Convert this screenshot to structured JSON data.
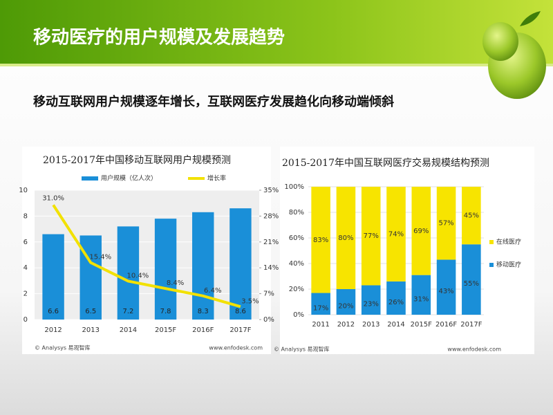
{
  "header": {
    "title": "移动医疗的用户规模及发展趋势"
  },
  "subtitle": "移动互联网用户规模逐年增长，互联网医疗发展趋化向移动端倾斜",
  "chart_data": [
    {
      "type": "bar",
      "title": "2015-2017年中国移动互联网用户规模预测",
      "categories": [
        "2012",
        "2013",
        "2014",
        "2015F",
        "2016F",
        "2017F"
      ],
      "series": [
        {
          "name": "用户规模（亿人次）",
          "color": "#1a8fd8",
          "values": [
            6.6,
            6.5,
            7.2,
            7.8,
            8.3,
            8.6
          ]
        },
        {
          "name": "增长率",
          "color": "#f2e100",
          "type": "line",
          "axis": "y2",
          "values": [
            31.0,
            15.4,
            10.4,
            8.4,
            6.4,
            3.5
          ],
          "value_labels": [
            "31.0%",
            "15.4%",
            "10.4%",
            "8.4%",
            "6.4%",
            "3.5%"
          ]
        }
      ],
      "ylim": [
        0,
        10
      ],
      "yticks": [
        0,
        2,
        4,
        6,
        8,
        10
      ],
      "y2lim": [
        0,
        35
      ],
      "y2ticks": [
        {
          "value": 0,
          "label": "0%"
        },
        {
          "value": 7,
          "label": "7%"
        },
        {
          "value": 14,
          "label": "14%"
        },
        {
          "value": 21,
          "label": "21%"
        },
        {
          "value": 28,
          "label": "28%"
        },
        {
          "value": 35,
          "label": "35%"
        }
      ],
      "grid": true,
      "legend": "top",
      "source": "© Analysys 易观智库",
      "website": "www.enfodesk.com"
    },
    {
      "type": "stacked_bar",
      "title": "2015-2017年中国互联网医疗交易规模结构预测",
      "categories": [
        "2011",
        "2012",
        "2013",
        "2014",
        "2015F",
        "2016F",
        "2017F"
      ],
      "series": [
        {
          "name": "移动医疗",
          "color": "#1a8fd8",
          "values": [
            17,
            20,
            23,
            26,
            31,
            43,
            55
          ],
          "value_labels": [
            "17%",
            "20%",
            "23%",
            "26%",
            "31%",
            "43%",
            "55%"
          ]
        },
        {
          "name": "在线医疗",
          "color": "#f7e400",
          "values": [
            83,
            80,
            77,
            74,
            69,
            57,
            45
          ],
          "value_labels": [
            "83%",
            "80%",
            "77%",
            "74%",
            "69%",
            "57%",
            "45%"
          ]
        }
      ],
      "ylim": [
        0,
        100
      ],
      "yticks": [
        {
          "value": 0,
          "label": "0%"
        },
        {
          "value": 20,
          "label": "20%"
        },
        {
          "value": 40,
          "label": "40%"
        },
        {
          "value": 60,
          "label": "60%"
        },
        {
          "value": 80,
          "label": "80%"
        },
        {
          "value": 100,
          "label": "100%"
        }
      ],
      "grid": true,
      "legend": "right",
      "source": "© Analysys 易观智库",
      "website": "www.enfodesk.com"
    }
  ]
}
